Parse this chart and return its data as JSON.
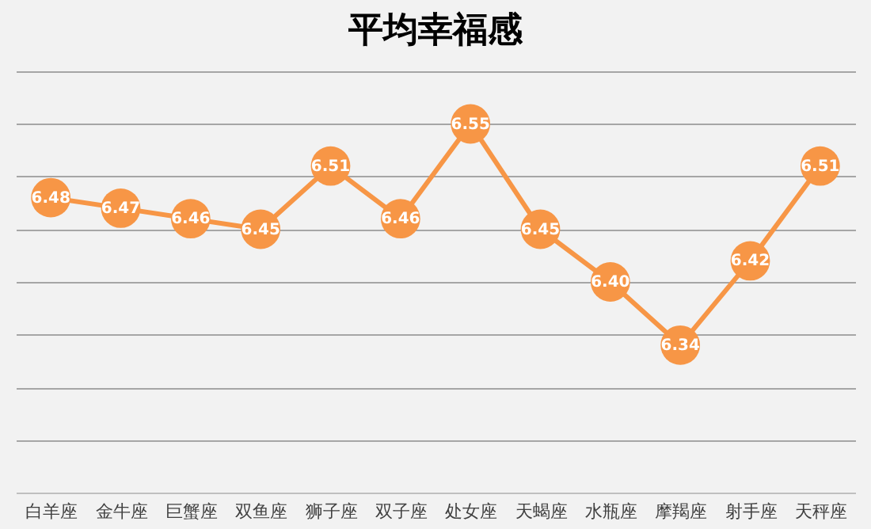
{
  "chart_data": {
    "type": "line",
    "title": "平均幸福感",
    "categories": [
      "白羊座",
      "金牛座",
      "巨蟹座",
      "双鱼座",
      "狮子座",
      "双子座",
      "处女座",
      "天蝎座",
      "水瓶座",
      "摩羯座",
      "射手座",
      "天秤座"
    ],
    "values": [
      6.48,
      6.47,
      6.46,
      6.45,
      6.51,
      6.46,
      6.55,
      6.45,
      6.4,
      6.34,
      6.42,
      6.51
    ],
    "value_labels": [
      "6.48",
      "6.47",
      "6.46",
      "6.45",
      "6.51",
      "6.46",
      "6.55",
      "6.45",
      "6.40",
      "6.34",
      "6.42",
      "6.51"
    ],
    "color": "#f79646",
    "ylim": [
      6.2,
      6.6
    ],
    "tick_labels": "x",
    "grid": "y",
    "marker": "circle",
    "line_style": "solid"
  }
}
